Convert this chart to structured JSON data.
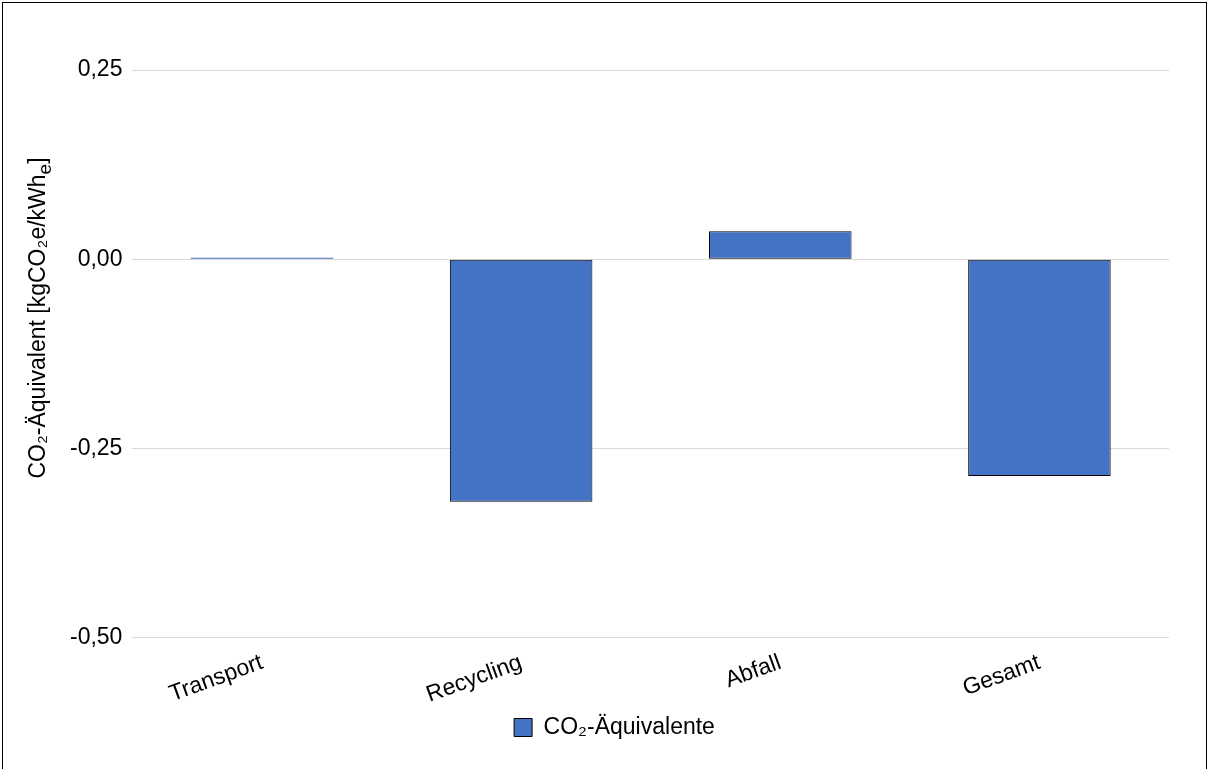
{
  "chart_data": {
    "type": "bar",
    "ylabel": "CO₂-Äquivalent [kgCO₂e/kWh$_{e}$]",
    "categories": [
      "Transport",
      "Recycling",
      "Abfall",
      "Gesamt"
    ],
    "series": [
      {
        "name": "CO₂-Äquivalente",
        "color": "#4472c4",
        "values": [
          0.002,
          -0.32,
          0.037,
          -0.286
        ]
      }
    ],
    "ylim": [
      -0.5,
      0.25
    ],
    "yticks": [
      {
        "value": -0.5,
        "label": "-0,50"
      },
      {
        "value": -0.25,
        "label": "-0,25"
      },
      {
        "value": 0,
        "label": "0,00"
      },
      {
        "value": 0.25,
        "label": "0,25"
      }
    ],
    "grid": "y",
    "legend": "bottom"
  }
}
